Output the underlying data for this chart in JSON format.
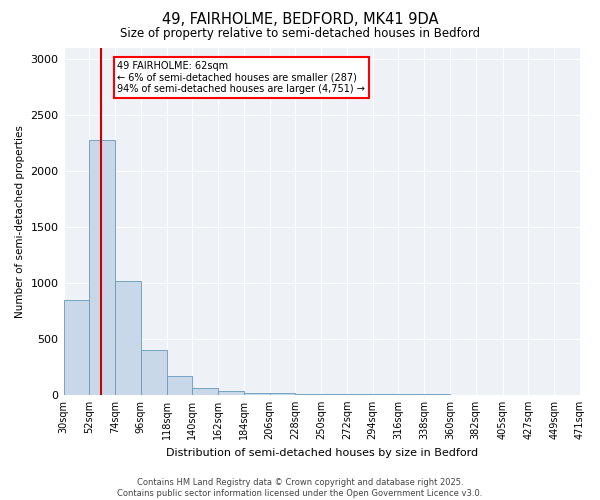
{
  "title_line1": "49, FAIRHOLME, BEDFORD, MK41 9DA",
  "title_line2": "Size of property relative to semi-detached houses in Bedford",
  "xlabel": "Distribution of semi-detached houses by size in Bedford",
  "ylabel": "Number of semi-detached properties",
  "property_size": 62,
  "annotation_line1": "49 FAIRHOLME: 62sqm",
  "annotation_line2": "← 6% of semi-detached houses are smaller (287)",
  "annotation_line3": "94% of semi-detached houses are larger (4,751) →",
  "bar_color": "#c8d8e8",
  "bar_edge_color": "#6699bb",
  "red_line_color": "#cc0000",
  "background_color": "#ffffff",
  "plot_bg_color": "#eef2f7",
  "grid_color": "#ffffff",
  "bins": [
    30,
    52,
    74,
    96,
    118,
    140,
    162,
    184,
    206,
    228,
    250,
    272,
    294,
    316,
    338,
    360,
    382,
    405,
    427,
    449,
    471
  ],
  "bin_labels": [
    "30sqm",
    "52sqm",
    "74sqm",
    "96sqm",
    "118sqm",
    "140sqm",
    "162sqm",
    "184sqm",
    "206sqm",
    "228sqm",
    "250sqm",
    "272sqm",
    "294sqm",
    "316sqm",
    "338sqm",
    "360sqm",
    "382sqm",
    "405sqm",
    "427sqm",
    "449sqm",
    "471sqm"
  ],
  "values": [
    850,
    2270,
    1020,
    400,
    170,
    60,
    30,
    20,
    15,
    10,
    8,
    5,
    4,
    3,
    3,
    2,
    2,
    1,
    1,
    0
  ],
  "ylim": [
    0,
    3100
  ],
  "yticks": [
    0,
    500,
    1000,
    1500,
    2000,
    2500,
    3000
  ],
  "footer_line1": "Contains HM Land Registry data © Crown copyright and database right 2025.",
  "footer_line2": "Contains public sector information licensed under the Open Government Licence v3.0."
}
